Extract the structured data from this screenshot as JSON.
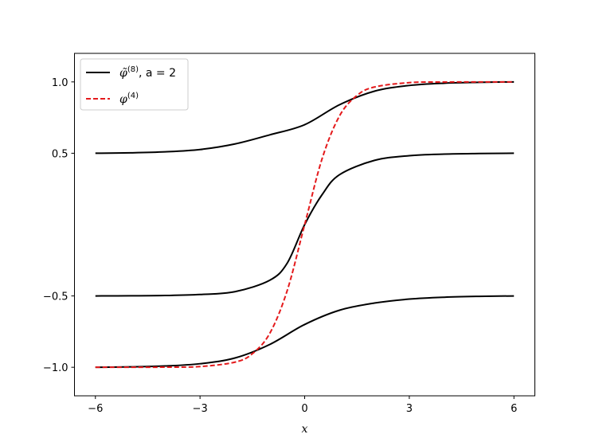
{
  "chart_data": {
    "type": "line",
    "xlabel": "x",
    "ylabel": "",
    "title": "",
    "xlim": [
      -6.6,
      6.6
    ],
    "ylim": [
      -1.2,
      1.2
    ],
    "xticks": [
      -6,
      -3,
      0,
      3,
      6
    ],
    "xtick_labels": [
      "−6",
      "−3",
      "0",
      "3",
      "6"
    ],
    "yticks": [
      -1.0,
      -0.5,
      0.5,
      1.0
    ],
    "ytick_labels": [
      "−1.0",
      "−0.5",
      "0.5",
      "1.0"
    ],
    "grid": false,
    "legend_position": "top-left",
    "legend": [
      {
        "series": "phi8",
        "label_main": "φ̃",
        "label_sup": "(8)",
        "label_rest": ", a = 2",
        "color": "#000000",
        "style": "solid"
      },
      {
        "series": "phi4",
        "label_main": "φ",
        "label_sup": "(4)",
        "label_rest": "",
        "color": "#e41a1c",
        "style": "dashed"
      }
    ],
    "series": [
      {
        "id": "phi8",
        "color": "#000000",
        "style": "solid",
        "curves": [
          {
            "x": [
              -6,
              -5,
              -4,
              -3,
              -2,
              -1,
              0,
              1,
              2,
              3,
              4,
              5,
              6
            ],
            "y": [
              0.5,
              0.503,
              0.51,
              0.526,
              0.565,
              0.629,
              0.7,
              0.84,
              0.935,
              0.975,
              0.991,
              0.997,
              1.0
            ]
          },
          {
            "x": [
              -6,
              -5,
              -4,
              -3,
              -2,
              -1,
              -0.5,
              0,
              0.5,
              1,
              2,
              3,
              4,
              5,
              6
            ],
            "y": [
              -0.5,
              -0.499,
              -0.497,
              -0.49,
              -0.47,
              -0.39,
              -0.27,
              0.0,
              0.21,
              0.35,
              0.45,
              0.483,
              0.494,
              0.498,
              0.5
            ]
          },
          {
            "x": [
              -6,
              -5,
              -4,
              -3,
              -2,
              -1,
              0,
              1,
              2,
              3,
              4,
              5,
              6
            ],
            "y": [
              -1.0,
              -0.997,
              -0.991,
              -0.975,
              -0.935,
              -0.84,
              -0.7,
              -0.6,
              -0.55,
              -0.522,
              -0.509,
              -0.503,
              -0.5
            ]
          }
        ]
      },
      {
        "id": "phi4",
        "color": "#e41a1c",
        "style": "dashed",
        "curves": [
          {
            "x": [
              -6,
              -5,
              -4,
              -3,
              -2,
              -1.5,
              -1,
              -0.5,
              0,
              0.5,
              1,
              1.5,
              2,
              3,
              4,
              5,
              6
            ],
            "y": [
              -1.0,
              -1.0,
              -0.999,
              -0.995,
              -0.964,
              -0.905,
              -0.762,
              -0.462,
              0.0,
              0.462,
              0.762,
              0.905,
              0.964,
              0.995,
              0.999,
              1.0,
              1.0
            ]
          }
        ]
      }
    ]
  }
}
